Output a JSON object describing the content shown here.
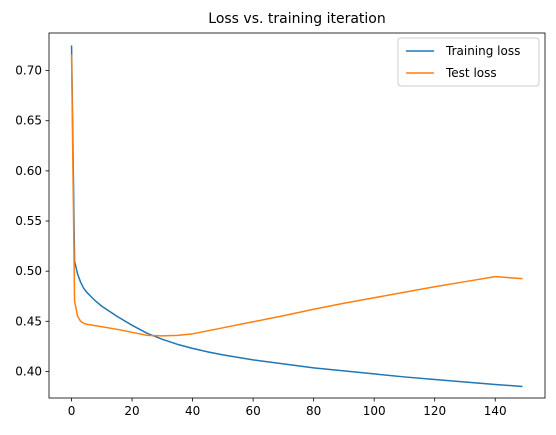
{
  "chart_data": {
    "type": "line",
    "title": "Loss vs. training iteration",
    "xlabel": "",
    "ylabel": "",
    "xlim": [
      -7.45,
      156.45
    ],
    "ylim": [
      0.3735,
      0.7375
    ],
    "xticks": [
      0,
      20,
      40,
      60,
      80,
      100,
      120,
      140
    ],
    "yticks": [
      0.4,
      0.45,
      0.5,
      0.55,
      0.6,
      0.65,
      0.7
    ],
    "ytick_labels": [
      "0.40",
      "0.45",
      "0.50",
      "0.55",
      "0.60",
      "0.65",
      "0.70"
    ],
    "legend_position": "upper right",
    "grid": false,
    "series": [
      {
        "name": "Training loss",
        "color": "#1f77b4",
        "x": [
          0,
          1,
          2,
          3,
          4,
          5,
          6,
          8,
          10,
          12,
          15,
          20,
          25,
          30,
          35,
          40,
          45,
          50,
          60,
          70,
          80,
          90,
          100,
          110,
          120,
          130,
          140,
          149
        ],
        "y": [
          0.725,
          0.51,
          0.497,
          0.489,
          0.483,
          0.479,
          0.476,
          0.47,
          0.465,
          0.461,
          0.455,
          0.446,
          0.438,
          0.432,
          0.427,
          0.423,
          0.4195,
          0.4165,
          0.4115,
          0.4075,
          0.4035,
          0.4005,
          0.3975,
          0.3945,
          0.392,
          0.3895,
          0.387,
          0.385
        ]
      },
      {
        "name": "Test loss",
        "color": "#ff7f0e",
        "x": [
          0,
          1,
          2,
          3,
          4,
          5,
          6,
          8,
          10,
          15,
          20,
          25,
          30,
          35,
          40,
          45,
          50,
          60,
          70,
          80,
          90,
          100,
          110,
          120,
          130,
          140,
          149
        ],
        "y": [
          0.716,
          0.47,
          0.455,
          0.45,
          0.448,
          0.447,
          0.4465,
          0.4455,
          0.4445,
          0.442,
          0.439,
          0.436,
          0.4355,
          0.436,
          0.4375,
          0.4405,
          0.4435,
          0.4495,
          0.4555,
          0.462,
          0.468,
          0.4735,
          0.479,
          0.4845,
          0.4895,
          0.4945,
          0.4925
        ]
      }
    ]
  }
}
